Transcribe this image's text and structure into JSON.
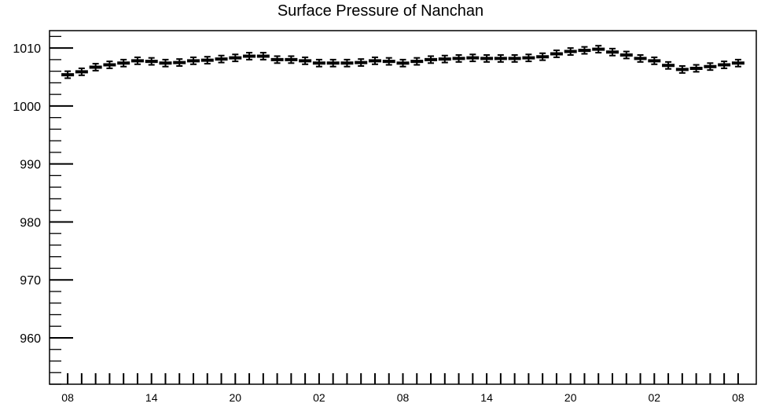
{
  "chart_data": {
    "type": "scatter",
    "title": "Surface Pressure of Nanchan",
    "xlabel": "",
    "ylabel": "",
    "ylim": [
      952,
      1013
    ],
    "y_ticks": [
      960,
      970,
      980,
      990,
      1000,
      1010
    ],
    "y_tick_labels": [
      "960",
      "970",
      "980",
      "990",
      "1000",
      "1010"
    ],
    "x_tick_labels": [
      "08",
      "14",
      "20",
      "02",
      "08",
      "14",
      "20",
      "02",
      "08"
    ],
    "x_tick_hours": [
      0,
      6,
      12,
      18,
      24,
      30,
      36,
      42,
      48
    ],
    "grid": false,
    "series": [
      {
        "x": [
          0,
          1,
          2,
          3,
          4,
          5,
          6,
          7,
          8,
          9,
          10,
          11,
          12,
          13,
          14,
          15,
          16,
          17,
          18,
          19,
          20,
          21,
          22,
          23,
          24,
          25,
          26,
          27,
          28,
          29,
          30,
          31,
          32,
          33,
          34,
          35,
          36,
          37,
          38,
          39,
          40,
          41,
          42,
          43,
          44,
          45,
          46,
          47,
          48
        ],
        "values": [
          1005.4,
          1005.9,
          1006.7,
          1007.1,
          1007.4,
          1007.8,
          1007.7,
          1007.4,
          1007.5,
          1007.8,
          1007.9,
          1008.1,
          1008.3,
          1008.6,
          1008.6,
          1008.0,
          1008.0,
          1007.8,
          1007.4,
          1007.4,
          1007.4,
          1007.5,
          1007.8,
          1007.7,
          1007.4,
          1007.7,
          1008.0,
          1008.1,
          1008.2,
          1008.3,
          1008.2,
          1008.2,
          1008.2,
          1008.3,
          1008.5,
          1009.0,
          1009.4,
          1009.6,
          1009.8,
          1009.3,
          1008.8,
          1008.2,
          1007.8,
          1007.0,
          1006.3,
          1006.5,
          1006.8,
          1007.1,
          1007.4
        ],
        "error": [
          0.6,
          0.6,
          0.6,
          0.6,
          0.6,
          0.6,
          0.6,
          0.6,
          0.6,
          0.6,
          0.6,
          0.6,
          0.6,
          0.6,
          0.6,
          0.6,
          0.6,
          0.6,
          0.6,
          0.6,
          0.6,
          0.6,
          0.6,
          0.6,
          0.6,
          0.6,
          0.6,
          0.6,
          0.6,
          0.6,
          0.6,
          0.6,
          0.6,
          0.6,
          0.6,
          0.6,
          0.6,
          0.6,
          0.6,
          0.6,
          0.6,
          0.6,
          0.6,
          0.6,
          0.6,
          0.6,
          0.6,
          0.6,
          0.6
        ]
      }
    ]
  }
}
